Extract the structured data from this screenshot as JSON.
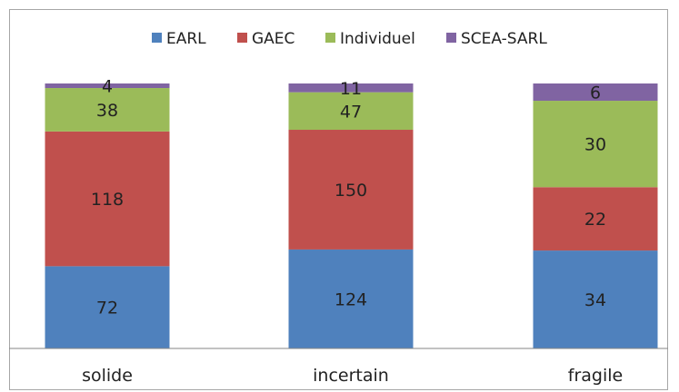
{
  "chart_data": {
    "type": "bar",
    "stacked": true,
    "title": "",
    "xlabel": "",
    "ylabel": "",
    "categories": [
      "solide",
      "incertain",
      "fragile"
    ],
    "series": [
      {
        "name": "EARL",
        "color": "#4f81bd",
        "values": [
          72,
          124,
          34
        ]
      },
      {
        "name": "GAEC",
        "color": "#c0504d",
        "values": [
          118,
          150,
          22
        ]
      },
      {
        "name": "Individuel",
        "color": "#9bbb59",
        "values": [
          38,
          47,
          30
        ]
      },
      {
        "name": "SCEA-SARL",
        "color": "#8064a2",
        "values": [
          4,
          11,
          6
        ]
      }
    ],
    "stack_mode": "percent",
    "data_labels": true,
    "legend_position": "top",
    "grid": false
  }
}
